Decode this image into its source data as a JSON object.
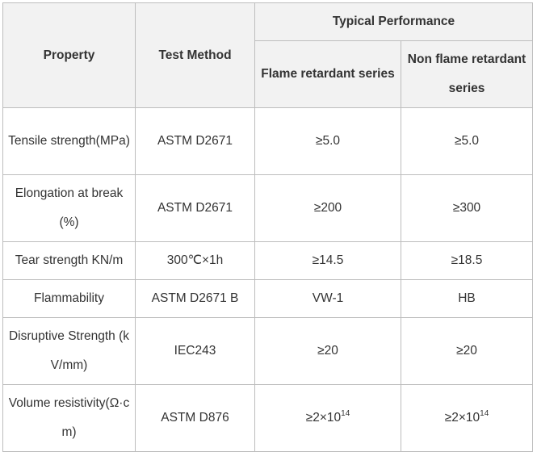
{
  "header": {
    "property": "Property",
    "test_method": "Test Method",
    "typical_performance": "Typical Performance",
    "flame_retardant": "Flame retardant series",
    "non_flame_retardant": "Non flame retardant series"
  },
  "rows": [
    {
      "property": "Tensile strength(MPa)",
      "method": "ASTM D2671",
      "flame": "≥5.0",
      "non_flame": "≥5.0"
    },
    {
      "property": "Elongation at break (%)",
      "method": "ASTM D2671",
      "flame": "≥200",
      "non_flame": "≥300"
    },
    {
      "property": "Tear strength KN/m",
      "method": "300℃×1h",
      "flame": "≥14.5",
      "non_flame": "≥18.5"
    },
    {
      "property": "Flammability",
      "method": "ASTM D2671 B",
      "flame": "VW-1",
      "non_flame": "HB"
    },
    {
      "property": "Disruptive Strength (kV/mm)",
      "method": "IEC243",
      "flame": "≥20",
      "non_flame": "≥20"
    },
    {
      "property": "Volume resistivity(Ω·cm)",
      "method": "ASTM D876",
      "flame_base": "≥2×10",
      "flame_exp": "14",
      "non_flame_base": "≥2×10",
      "non_flame_exp": "14"
    }
  ]
}
